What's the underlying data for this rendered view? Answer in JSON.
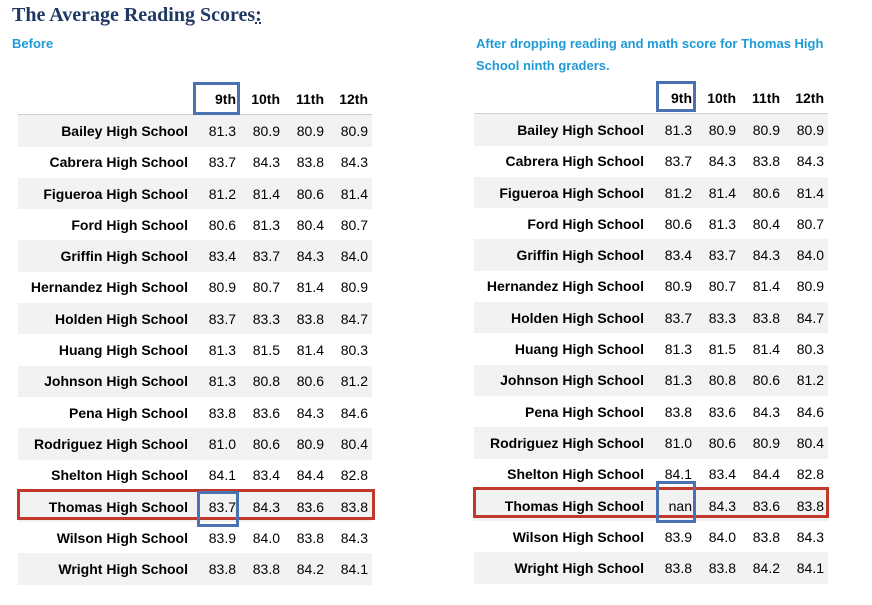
{
  "title": "The Average Reading Scores",
  "title_colon": ":",
  "left_caption": "Before",
  "right_caption": "After dropping reading and math score for Thomas High School ninth graders.",
  "columns": [
    "9th",
    "10th",
    "11th",
    "12th"
  ],
  "before": [
    {
      "school": "Bailey High School",
      "scores": [
        "81.3",
        "80.9",
        "80.9",
        "80.9"
      ]
    },
    {
      "school": "Cabrera High School",
      "scores": [
        "83.7",
        "84.3",
        "83.8",
        "84.3"
      ]
    },
    {
      "school": "Figueroa High School",
      "scores": [
        "81.2",
        "81.4",
        "80.6",
        "81.4"
      ]
    },
    {
      "school": "Ford High School",
      "scores": [
        "80.6",
        "81.3",
        "80.4",
        "80.7"
      ]
    },
    {
      "school": "Griffin High School",
      "scores": [
        "83.4",
        "83.7",
        "84.3",
        "84.0"
      ]
    },
    {
      "school": "Hernandez High School",
      "scores": [
        "80.9",
        "80.7",
        "81.4",
        "80.9"
      ]
    },
    {
      "school": "Holden High School",
      "scores": [
        "83.7",
        "83.3",
        "83.8",
        "84.7"
      ]
    },
    {
      "school": "Huang High School",
      "scores": [
        "81.3",
        "81.5",
        "81.4",
        "80.3"
      ]
    },
    {
      "school": "Johnson High School",
      "scores": [
        "81.3",
        "80.8",
        "80.6",
        "81.2"
      ]
    },
    {
      "school": "Pena High School",
      "scores": [
        "83.8",
        "83.6",
        "84.3",
        "84.6"
      ]
    },
    {
      "school": "Rodriguez High School",
      "scores": [
        "81.0",
        "80.6",
        "80.9",
        "80.4"
      ]
    },
    {
      "school": "Shelton High School",
      "scores": [
        "84.1",
        "83.4",
        "84.4",
        "82.8"
      ]
    },
    {
      "school": "Thomas High School",
      "scores": [
        "83.7",
        "84.3",
        "83.6",
        "83.8"
      ]
    },
    {
      "school": "Wilson High School",
      "scores": [
        "83.9",
        "84.0",
        "83.8",
        "84.3"
      ]
    },
    {
      "school": "Wright High School",
      "scores": [
        "83.8",
        "83.8",
        "84.2",
        "84.1"
      ]
    }
  ],
  "after": [
    {
      "school": "Bailey High School",
      "scores": [
        "81.3",
        "80.9",
        "80.9",
        "80.9"
      ]
    },
    {
      "school": "Cabrera High School",
      "scores": [
        "83.7",
        "84.3",
        "83.8",
        "84.3"
      ]
    },
    {
      "school": "Figueroa High School",
      "scores": [
        "81.2",
        "81.4",
        "80.6",
        "81.4"
      ]
    },
    {
      "school": "Ford High School",
      "scores": [
        "80.6",
        "81.3",
        "80.4",
        "80.7"
      ]
    },
    {
      "school": "Griffin High School",
      "scores": [
        "83.4",
        "83.7",
        "84.3",
        "84.0"
      ]
    },
    {
      "school": "Hernandez High School",
      "scores": [
        "80.9",
        "80.7",
        "81.4",
        "80.9"
      ]
    },
    {
      "school": "Holden High School",
      "scores": [
        "83.7",
        "83.3",
        "83.8",
        "84.7"
      ]
    },
    {
      "school": "Huang High School",
      "scores": [
        "81.3",
        "81.5",
        "81.4",
        "80.3"
      ]
    },
    {
      "school": "Johnson High School",
      "scores": [
        "81.3",
        "80.8",
        "80.6",
        "81.2"
      ]
    },
    {
      "school": "Pena High School",
      "scores": [
        "83.8",
        "83.6",
        "84.3",
        "84.6"
      ]
    },
    {
      "school": "Rodriguez High School",
      "scores": [
        "81.0",
        "80.6",
        "80.9",
        "80.4"
      ]
    },
    {
      "school": "Shelton High School",
      "scores": [
        "84.1",
        "83.4",
        "84.4",
        "82.8"
      ]
    },
    {
      "school": "Thomas High School",
      "scores": [
        "nan",
        "84.3",
        "83.6",
        "83.8"
      ]
    },
    {
      "school": "Wilson High School",
      "scores": [
        "83.9",
        "84.0",
        "83.8",
        "84.3"
      ]
    },
    {
      "school": "Wright High School",
      "scores": [
        "83.8",
        "83.8",
        "84.2",
        "84.1"
      ]
    }
  ],
  "colors": {
    "title": "#1f3864",
    "caption": "#1e9ad6",
    "highlight_column": "#4a72b0",
    "highlight_row": "#c0392b"
  }
}
